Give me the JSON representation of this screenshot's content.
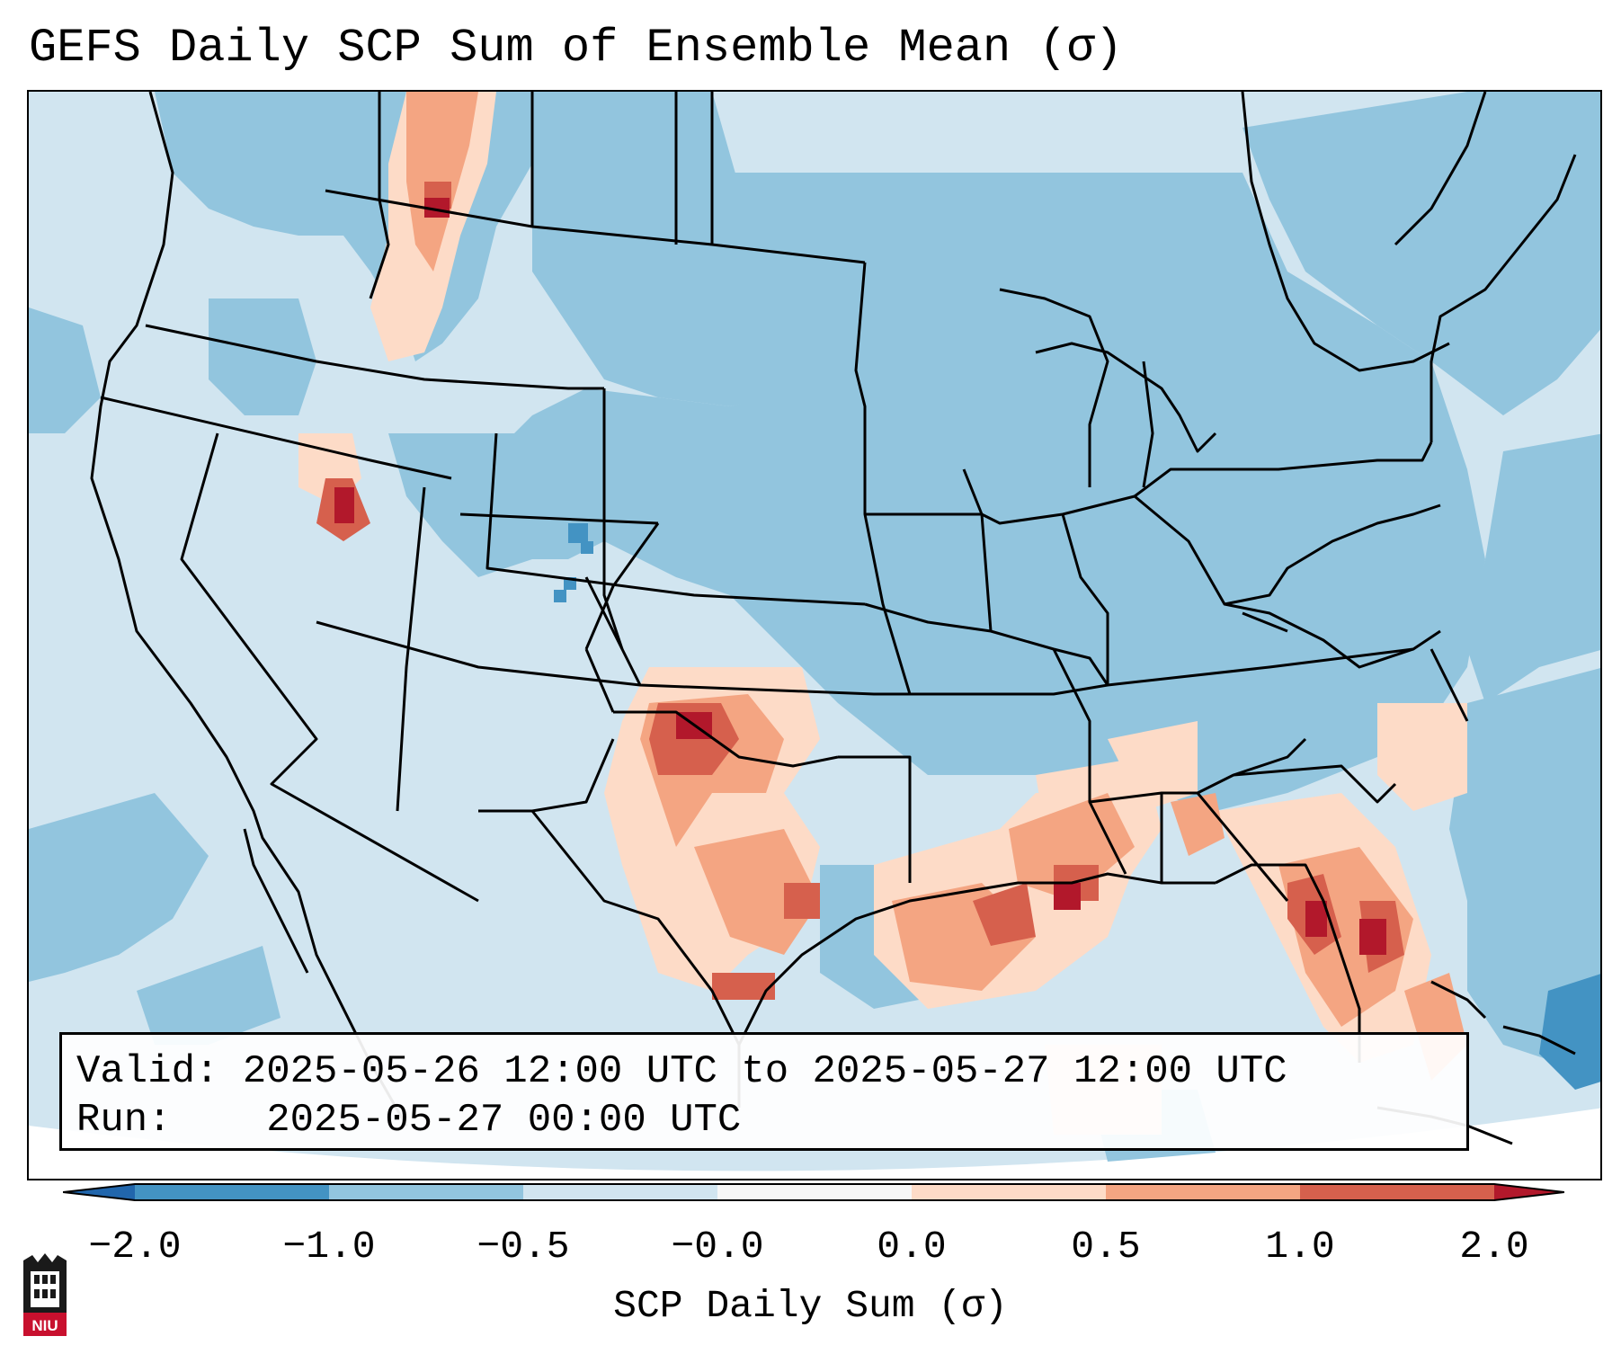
{
  "title": "GEFS Daily SCP Sum of Ensemble Mean (σ)",
  "info": {
    "valid_label": "Valid:",
    "valid_value": "2025-05-26 12:00 UTC to 2025-05-27 12:00 UTC",
    "run_label": "Run:",
    "run_value": "2025-05-27 00:00 UTC"
  },
  "colorbar": {
    "label": "SCP Daily Sum (σ)",
    "ticks": [
      "−2.0",
      "−1.0",
      "−0.5",
      "−0.0",
      "0.0",
      "0.5",
      "1.0",
      "2.0"
    ],
    "colors": [
      "#4393c3",
      "#92c5de",
      "#d1e5f0",
      "#f7f7f7",
      "#fddbc7",
      "#f4a582",
      "#d6604d"
    ],
    "under_color": "#2166ac",
    "over_color": "#b2182b"
  },
  "logo": {
    "text": "NIU",
    "name": "Northern Illinois University"
  }
}
